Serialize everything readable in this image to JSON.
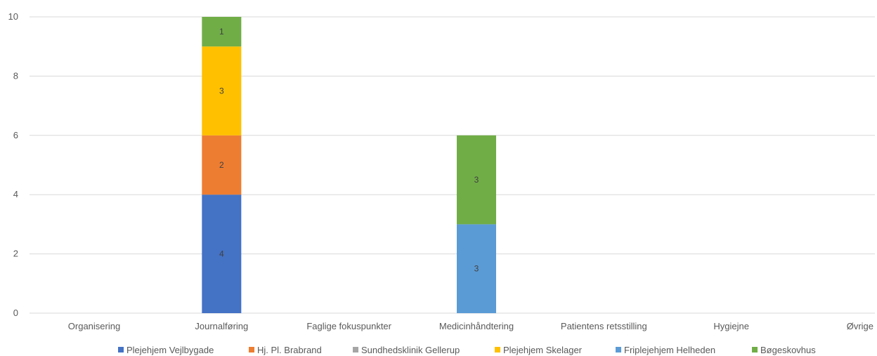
{
  "chart_data": {
    "type": "bar",
    "stacked": true,
    "categories": [
      "Organisering",
      "Journalføring",
      "Faglige fokuspunkter",
      "Medicinhåndtering",
      "Patientens retsstilling",
      "Hygiejne",
      "Øvrige"
    ],
    "series": [
      {
        "name": "Plejehjem Vejlbygade",
        "color": "#4472C4",
        "values": [
          0,
          4,
          0,
          0,
          0,
          0,
          0
        ]
      },
      {
        "name": "Hj. Pl. Brabrand",
        "color": "#ED7D31",
        "values": [
          0,
          2,
          0,
          0,
          0,
          0,
          0
        ]
      },
      {
        "name": "Sundhedsklinik Gellerup",
        "color": "#A5A5A5",
        "values": [
          0,
          0,
          0,
          0,
          0,
          0,
          0
        ]
      },
      {
        "name": "Plejehjem Skelager",
        "color": "#FFC000",
        "values": [
          0,
          3,
          0,
          0,
          0,
          0,
          0
        ]
      },
      {
        "name": "Friplejehjem Helheden",
        "color": "#5B9BD5",
        "values": [
          0,
          0,
          0,
          3,
          0,
          0,
          0
        ]
      },
      {
        "name": "Bøgeskovhus",
        "color": "#70AD47",
        "values": [
          0,
          1,
          0,
          3,
          0,
          0,
          0
        ]
      }
    ],
    "ylim": [
      0,
      10
    ],
    "yticks": [
      "0",
      "2",
      "4",
      "6",
      "8",
      "10"
    ],
    "grid": true,
    "legend": "bottom"
  }
}
